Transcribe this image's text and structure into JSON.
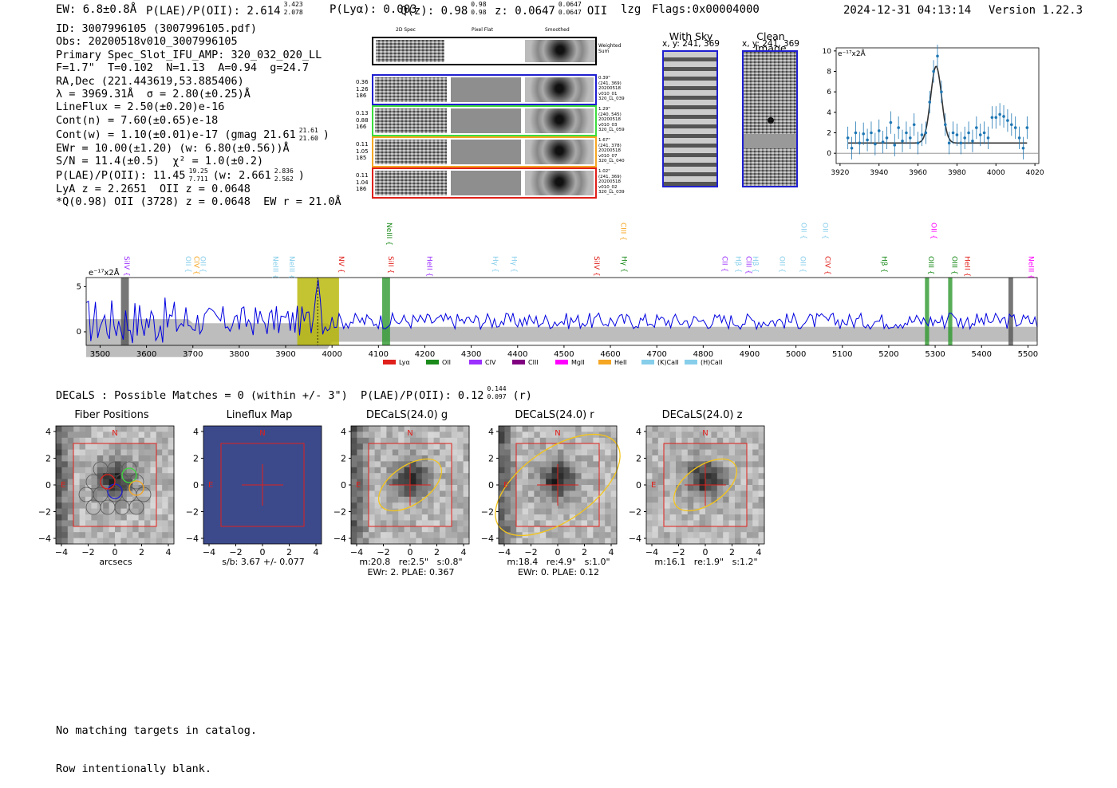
{
  "header": {
    "ew": "EW: 6.8±0.8Å",
    "plae_label": "P(LAE)/P(OII): 2.614",
    "plae_hi": "3.423",
    "plae_lo": "2.078",
    "plya": "P(Lyα): 0.003",
    "q_label": "Q(z): 0.98",
    "q_hi": "0.98",
    "q_lo": "0.98",
    "z_label": "z: 0.0647",
    "z_hi": "0.0647",
    "z_lo": "0.0647",
    "z_line": "OII",
    "lzg": "lzg",
    "flags": "Flags:0x00004000",
    "timestamp": "2024-12-31 04:13:14",
    "version": "Version 1.22.3"
  },
  "info": {
    "l1": "ID: 3007996105 (3007996105.pdf)",
    "l2": "Obs: 20200518v010_3007996105",
    "l3": "Primary Spec_Slot_IFU_AMP: 320_032_020_LL",
    "l4": "F=1.7\"  T=0.102  N=1.13  A=0.94  g=24.7",
    "l5": "RA,Dec (221.443619,53.885406)",
    "l6": "λ = 3969.31Å  σ = 2.80(±0.25)Å",
    "l7": "LineFlux = 2.50(±0.20)e-16",
    "l8": "Cont(n) = 7.60(±0.65)e-18",
    "l9_a": "Cont(w) = 1.10(±0.01)e-17 (gmag 21.61",
    "l9_hi": "21.61",
    "l9_lo": "21.60",
    "l9_b": ")",
    "l10": "EWr = 10.00(±1.20) (w: 6.80(±0.56))Å",
    "l11": "S/N = 11.4(±0.5)  χ² = 1.0(±0.2)",
    "l12_a": "P(LAE)/P(OII): 11.45",
    "l12_hi": "19.25",
    "l12_lo": "7.711",
    "l12_b": "(w: 2.661",
    "l12_hi2": "2.836",
    "l12_lo2": "2.562",
    "l12_c": ")",
    "l13": "LyA z = 2.2651  OII z = 0.0648",
    "l14": "*Q(0.98) OII (3728) z = 0.0648  EW r = 21.0Å"
  },
  "fiber_panel": {
    "col_headers": [
      "2D Spec",
      "Pixel Flat",
      "Smoothed"
    ],
    "weighted_label": "Weighted\nSum",
    "rows": [
      {
        "left": "0.36\n1.26\n186",
        "right": "0.39\"\n(241, 369)\n20200518\nv010_01\n320_LL_039",
        "color": "#1f1fd0"
      },
      {
        "left": "0.13\n0.88\n166",
        "right": "1.29\"\n(240, 545)\n20200518\nv010_03\n320_LL_059",
        "color": "#3ddc3d"
      },
      {
        "left": "0.11\n1.05\n185",
        "right": "1.67\"\n(241, 378)\n20200518\nv010_07\n320_LL_040",
        "color": "#f5a623"
      },
      {
        "left": "0.11\n1.04\n186",
        "right": "1.02\"\n(241, 369)\n20200518\nv010_02\n320_LL_039",
        "color": "#e0201b"
      }
    ]
  },
  "cutouts": {
    "with_sky_title": "With Sky",
    "with_sky_xy": "x, y: 241, 369",
    "clean_title": "Clean Image",
    "clean_xy": "x, y: 241, 369"
  },
  "zoom_chart": {
    "unit_label": "e⁻¹⁷x2Å",
    "xticks": [
      "3920",
      "3940",
      "3960",
      "3980",
      "4000",
      "4020"
    ],
    "yticks": [
      "0",
      "2",
      "4",
      "6",
      "8",
      "10"
    ]
  },
  "full_spectrum": {
    "unit_label": "e⁻¹⁷x2Å",
    "yticks": [
      "0",
      "5"
    ],
    "xticks": [
      "3500",
      "3600",
      "3700",
      "3800",
      "3900",
      "4000",
      "4100",
      "4200",
      "4300",
      "4400",
      "4500",
      "4600",
      "4700",
      "4800",
      "4900",
      "5000",
      "5100",
      "5200",
      "5300",
      "5400",
      "5500"
    ],
    "lines": [
      {
        "name": "SiIV",
        "wl": 3547,
        "color": "#9b30ff",
        "tier": 0
      },
      {
        "name": "OII",
        "wl": 3680,
        "color": "#87ceeb",
        "tier": 0
      },
      {
        "name": "CIV",
        "wl": 3698,
        "color": "#f5a623",
        "tier": 0
      },
      {
        "name": "OII",
        "wl": 3712,
        "color": "#87ceeb",
        "tier": 0
      },
      {
        "name": "NeIII",
        "wl": 3868,
        "color": "#87ceeb",
        "tier": 0
      },
      {
        "name": "NeIII",
        "wl": 3903,
        "color": "#87ceeb",
        "tier": 0
      },
      {
        "name": "NV",
        "wl": 4010,
        "color": "#e0201b",
        "tier": 0
      },
      {
        "name": "NeIII",
        "wl": 4113,
        "color": "#1a8a1a",
        "tier": 1
      },
      {
        "name": "SiII",
        "wl": 4117,
        "color": "#e0201b",
        "tier": 0
      },
      {
        "name": "HeII",
        "wl": 4200,
        "color": "#9b30ff",
        "tier": 0
      },
      {
        "name": "Hγ",
        "wl": 4342,
        "color": "#87ceeb",
        "tier": 0
      },
      {
        "name": "Hγ",
        "wl": 4382,
        "color": "#87ceeb",
        "tier": 0
      },
      {
        "name": "SiIV",
        "wl": 4560,
        "color": "#e0201b",
        "tier": 0
      },
      {
        "name": "CIII",
        "wl": 4618,
        "color": "#f5a623",
        "tier": 1
      },
      {
        "name": "Hγ",
        "wl": 4620,
        "color": "#1a8a1a",
        "tier": 0
      },
      {
        "name": "CII",
        "wl": 4836,
        "color": "#9b30ff",
        "tier": 0
      },
      {
        "name": "Hβ",
        "wl": 4866,
        "color": "#87ceeb",
        "tier": 0
      },
      {
        "name": "CIII",
        "wl": 4888,
        "color": "#9b30ff",
        "tier": 0
      },
      {
        "name": "Hβ",
        "wl": 4903,
        "color": "#87ceeb",
        "tier": 0
      },
      {
        "name": "OII",
        "wl": 4960,
        "color": "#87ceeb",
        "tier": 0
      },
      {
        "name": "OII",
        "wl": 5005,
        "color": "#87ceeb",
        "tier": 0
      },
      {
        "name": "OII",
        "wl": 5007,
        "color": "#87ceeb",
        "tier": 1
      },
      {
        "name": "CIV",
        "wl": 5058,
        "color": "#e0201b",
        "tier": 0
      },
      {
        "name": "OII",
        "wl": 5053,
        "color": "#87ceeb",
        "tier": 1
      },
      {
        "name": "Hβ",
        "wl": 5180,
        "color": "#1a8a1a",
        "tier": 0
      },
      {
        "name": "OIII",
        "wl": 5281,
        "color": "#1a8a1a",
        "tier": 0
      },
      {
        "name": "OII",
        "wl": 5287,
        "color": "#ff00ff",
        "tier": 1
      },
      {
        "name": "OIII",
        "wl": 5332,
        "color": "#1a8a1a",
        "tier": 0
      },
      {
        "name": "HeII",
        "wl": 5359,
        "color": "#e0201b",
        "tier": 0
      },
      {
        "name": "NeIII",
        "wl": 5497,
        "color": "#ff00ff",
        "tier": 0
      }
    ],
    "legend": [
      {
        "label": "Lyα",
        "color": "#e0201b"
      },
      {
        "label": "OII",
        "color": "#1a8a1a"
      },
      {
        "label": "CIV",
        "color": "#9b30ff"
      },
      {
        "label": "CIII",
        "color": "#800080"
      },
      {
        "label": "MgII",
        "color": "#ff00ff"
      },
      {
        "label": "HeII",
        "color": "#f5a623"
      },
      {
        "label": "(K)CaII",
        "color": "#87ceeb"
      },
      {
        "label": "(H)CaII",
        "color": "#87ceeb"
      }
    ]
  },
  "decals": {
    "summary_a": "DECaLS : Possible Matches = 0 (within +/- 3\")  P(LAE)/P(OII): 0.12",
    "summary_hi": "0.144",
    "summary_lo": "0.097",
    "summary_b": "(r)",
    "panels": [
      {
        "title": "Fiber Positions",
        "caption": "arcsecs",
        "bg": "fiber"
      },
      {
        "title": "Lineflux Map",
        "caption": "s/b: 3.67 +/- 0.077",
        "bg": "flux"
      },
      {
        "title": "DECaLS(24.0) g",
        "caption": "m:20.8   re:2.5\"   s:0.8\"\nEWr: 2. PLAE: 0.367",
        "bg": "g"
      },
      {
        "title": "DECaLS(24.0) r",
        "caption": "m:18.4   re:4.9\"   s:1.0\"\nEWr: 0. PLAE: 0.12",
        "bg": "r"
      },
      {
        "title": "DECaLS(24.0) z",
        "caption": "m:16.1   re:1.9\"   s:1.2\"",
        "bg": "z"
      }
    ],
    "ticks": [
      "4",
      "2",
      "0",
      "−2",
      "−4"
    ],
    "xticks": [
      "−4",
      "−2",
      "0",
      "2",
      "4"
    ],
    "north": "N",
    "east": "E"
  },
  "footer": {
    "l1": "No matching targets in catalog.",
    "l2": "Row intentionally blank."
  },
  "chart_data": [
    {
      "type": "scatter",
      "title": "",
      "xlabel": "",
      "ylabel": "e-17 x2Å",
      "xlim": [
        3918,
        4022
      ],
      "ylim": [
        -1,
        10.3
      ],
      "x": [
        3924,
        3926,
        3928,
        3930,
        3932,
        3934,
        3936,
        3938,
        3940,
        3942,
        3944,
        3946,
        3948,
        3950,
        3952,
        3954,
        3956,
        3958,
        3960,
        3962,
        3964,
        3966,
        3968,
        3970,
        3972,
        3974,
        3976,
        3978,
        3980,
        3982,
        3984,
        3986,
        3988,
        3990,
        3992,
        3994,
        3996,
        3998,
        4000,
        4002,
        4004,
        4006,
        4008,
        4010,
        4012,
        4014,
        4016
      ],
      "y": [
        1.5,
        0.5,
        2.0,
        1.0,
        1.9,
        1.3,
        2.0,
        0.9,
        2.2,
        1.1,
        1.5,
        3.0,
        0.8,
        2.5,
        1.2,
        2.0,
        1.5,
        2.8,
        1.0,
        1.8,
        2.0,
        5.0,
        8.0,
        9.5,
        6.0,
        2.8,
        1.0,
        2.0,
        1.8,
        1.0,
        1.5,
        2.0,
        1.2,
        2.5,
        1.8,
        2.0,
        1.5,
        3.5,
        3.5,
        3.8,
        3.6,
        3.2,
        2.8,
        2.5,
        1.5,
        0.5,
        2.5
      ],
      "series": [
        {
          "name": "",
          "values": []
        }
      ]
    },
    {
      "type": "line",
      "title": "",
      "xlabel": "",
      "ylabel": "e-17 x2Å",
      "xlim": [
        3470,
        5520
      ],
      "ylim": [
        -1.5,
        6
      ],
      "x_start": 3470,
      "x_step": 5,
      "shaded_regions": [
        {
          "from": 3545,
          "to": 3562,
          "color": "#555555"
        },
        {
          "from": 3925,
          "to": 4015,
          "color": "#b5b500"
        },
        {
          "from": 4108,
          "to": 4125,
          "color": "#2e9a2e"
        },
        {
          "from": 5278,
          "to": 5287,
          "color": "#2e9a2e"
        },
        {
          "from": 5328,
          "to": 5337,
          "color": "#2e9a2e"
        },
        {
          "from": 5458,
          "to": 5468,
          "color": "#555555"
        }
      ]
    }
  ]
}
